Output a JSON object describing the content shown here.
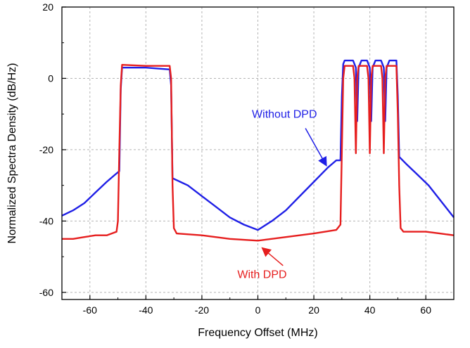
{
  "chart_data": {
    "type": "line",
    "title": "",
    "xlabel": "Frequency Offset (MHz)",
    "ylabel": "Normalized Spectra Density (dB/Hz)",
    "xlim": [
      -70,
      70
    ],
    "ylim": [
      -62,
      20
    ],
    "xticks": [
      -60,
      -40,
      -20,
      0,
      20,
      40,
      60
    ],
    "yticks": [
      -60,
      -40,
      -20,
      0,
      20
    ],
    "grid": true,
    "series": [
      {
        "name": "Without DPD",
        "color": "#1f1fe6",
        "points": [
          [
            -70,
            -38.5
          ],
          [
            -66,
            -37
          ],
          [
            -62,
            -35
          ],
          [
            -58,
            -32
          ],
          [
            -54,
            -29
          ],
          [
            -51,
            -27
          ],
          [
            -49.5,
            -26
          ],
          [
            -49,
            -3
          ],
          [
            -48.5,
            3
          ],
          [
            -40,
            3
          ],
          [
            -31.5,
            2.5
          ],
          [
            -31,
            -2
          ],
          [
            -30.5,
            -28
          ],
          [
            -25,
            -30
          ],
          [
            -20,
            -33
          ],
          [
            -15,
            -36
          ],
          [
            -10,
            -39
          ],
          [
            -5,
            -41
          ],
          [
            0,
            -42.5
          ],
          [
            5,
            -40
          ],
          [
            10,
            -37
          ],
          [
            15,
            -33
          ],
          [
            20,
            -29
          ],
          [
            25,
            -25
          ],
          [
            28,
            -23
          ],
          [
            29.5,
            -23
          ],
          [
            30,
            -5
          ],
          [
            30.5,
            4
          ],
          [
            31,
            5
          ],
          [
            34,
            5
          ],
          [
            35,
            3
          ],
          [
            35.5,
            -12
          ],
          [
            36,
            3
          ],
          [
            37,
            5
          ],
          [
            39,
            5
          ],
          [
            40,
            3
          ],
          [
            40.5,
            -12
          ],
          [
            41,
            3
          ],
          [
            42,
            5
          ],
          [
            44,
            5
          ],
          [
            45,
            3
          ],
          [
            45.5,
            -12
          ],
          [
            46,
            3
          ],
          [
            47,
            5
          ],
          [
            49.5,
            5
          ],
          [
            50,
            -5
          ],
          [
            50.5,
            -22
          ],
          [
            53,
            -24
          ],
          [
            57,
            -27
          ],
          [
            61,
            -30
          ],
          [
            64,
            -33
          ],
          [
            67,
            -36
          ],
          [
            70,
            -39
          ]
        ]
      },
      {
        "name": "With DPD",
        "color": "#e61e1e",
        "points": [
          [
            -70,
            -45
          ],
          [
            -66,
            -45
          ],
          [
            -62,
            -44.5
          ],
          [
            -58,
            -44
          ],
          [
            -54,
            -44
          ],
          [
            -50.5,
            -43
          ],
          [
            -50,
            -40
          ],
          [
            -49.5,
            -20
          ],
          [
            -49,
            -2
          ],
          [
            -48.5,
            3.8
          ],
          [
            -40,
            3.5
          ],
          [
            -31.5,
            3.5
          ],
          [
            -31,
            0
          ],
          [
            -30.5,
            -30
          ],
          [
            -30,
            -42
          ],
          [
            -29,
            -43.5
          ],
          [
            -20,
            -44
          ],
          [
            -10,
            -45
          ],
          [
            0,
            -45.5
          ],
          [
            10,
            -44.5
          ],
          [
            20,
            -43.5
          ],
          [
            28,
            -42.5
          ],
          [
            29.5,
            -41
          ],
          [
            30,
            -20
          ],
          [
            30.5,
            0
          ],
          [
            31,
            3.5
          ],
          [
            34,
            3.5
          ],
          [
            34.5,
            0
          ],
          [
            35,
            -21
          ],
          [
            35.5,
            0
          ],
          [
            36,
            3.5
          ],
          [
            39,
            3.5
          ],
          [
            39.5,
            0
          ],
          [
            40,
            -21
          ],
          [
            40.5,
            0
          ],
          [
            41,
            3.5
          ],
          [
            44,
            3.5
          ],
          [
            44.5,
            0
          ],
          [
            45,
            -21
          ],
          [
            45.5,
            0
          ],
          [
            46,
            3.5
          ],
          [
            49.5,
            3.5
          ],
          [
            50,
            -10
          ],
          [
            50.5,
            -30
          ],
          [
            51,
            -42
          ],
          [
            52,
            -43
          ],
          [
            60,
            -43
          ],
          [
            65,
            -43.5
          ],
          [
            70,
            -44
          ]
        ]
      }
    ],
    "annotations": [
      {
        "text": "Without DPD",
        "color": "#1f1fe6",
        "text_at": [
          9.5,
          -11
        ],
        "arrow_from": [
          17,
          -14
        ],
        "arrow_to": [
          24.5,
          -24.5
        ]
      },
      {
        "text": "With DPD",
        "color": "#e61e1e",
        "text_at": [
          1.5,
          -56
        ],
        "arrow_from": [
          9,
          -52.5
        ],
        "arrow_to": [
          1.5,
          -47.5
        ]
      }
    ]
  }
}
